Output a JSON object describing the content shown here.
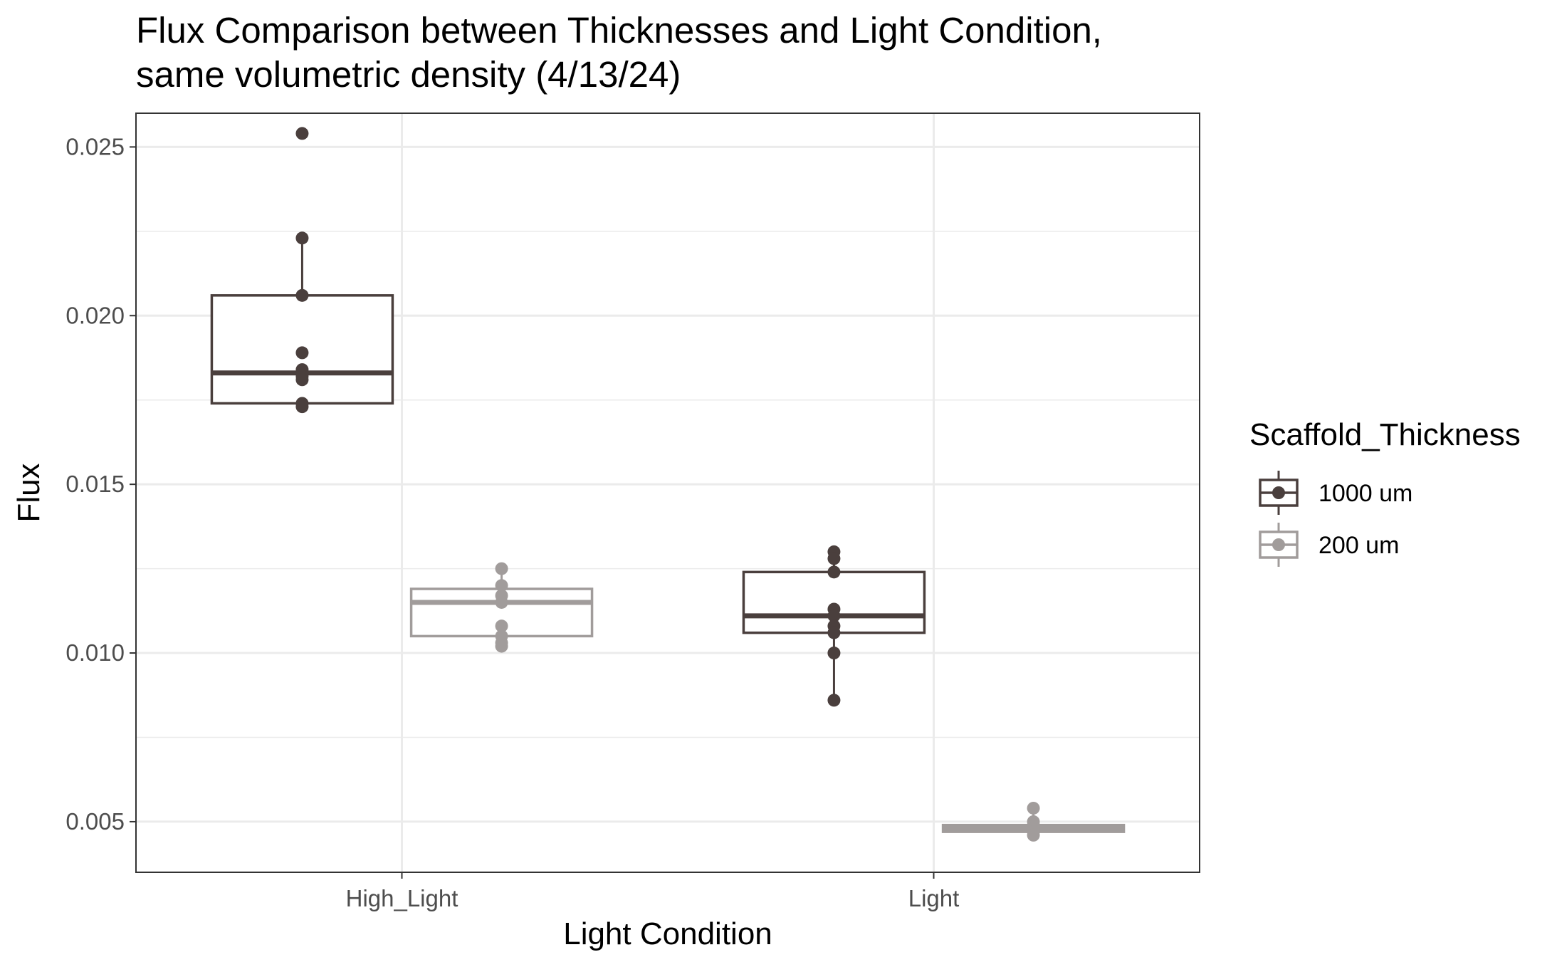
{
  "chart_data": {
    "type": "box",
    "title_line1": "Flux Comparison between Thicknesses and Light Condition,",
    "title_line2": "same volumetric density (4/13/24)",
    "xlabel": "Light Condition",
    "ylabel": "Flux",
    "categories": [
      "High_Light",
      "Light"
    ],
    "ylim": [
      0.0035,
      0.026
    ],
    "yticks": [
      0.005,
      0.01,
      0.015,
      0.02,
      0.025
    ],
    "ytick_labels": [
      "0.005",
      "0.010",
      "0.015",
      "0.020",
      "0.025"
    ],
    "grid": true,
    "legend": {
      "title": "Scaffold_Thickness",
      "placement": "right"
    },
    "series": [
      {
        "name": "1000 um",
        "color": "#4a3f3d",
        "boxes": [
          {
            "category": "High_Light",
            "whisker_low": 0.0173,
            "q1": 0.0174,
            "median": 0.0183,
            "q3": 0.0206,
            "whisker_high": 0.0223,
            "points": [
              0.0254,
              0.0223,
              0.0206,
              0.0189,
              0.0184,
              0.0182,
              0.0181,
              0.0174,
              0.0173
            ]
          },
          {
            "category": "Light",
            "whisker_low": 0.0086,
            "q1": 0.0106,
            "median": 0.0111,
            "q3": 0.0124,
            "whisker_high": 0.013,
            "points": [
              0.013,
              0.0128,
              0.0124,
              0.0113,
              0.0111,
              0.0108,
              0.0106,
              0.01,
              0.0086
            ]
          }
        ]
      },
      {
        "name": "200 um",
        "color": "#a19c9b",
        "boxes": [
          {
            "category": "High_Light",
            "whisker_low": 0.0102,
            "q1": 0.0105,
            "median": 0.0115,
            "q3": 0.0119,
            "whisker_high": 0.0125,
            "points": [
              0.0125,
              0.012,
              0.0117,
              0.0115,
              0.0108,
              0.0105,
              0.0103,
              0.0102
            ]
          },
          {
            "category": "Light",
            "whisker_low": 0.0046,
            "q1": 0.0047,
            "median": 0.0048,
            "q3": 0.0049,
            "whisker_high": 0.0054,
            "points": [
              0.0054,
              0.005,
              0.0049,
              0.0048,
              0.0047,
              0.0046
            ]
          }
        ]
      }
    ]
  }
}
